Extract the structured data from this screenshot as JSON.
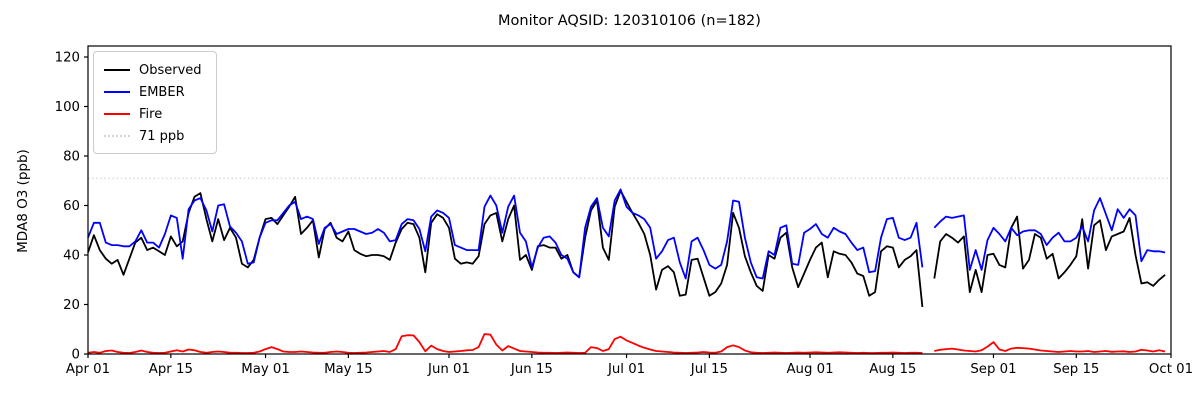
{
  "title": "Monitor AQSID: 120310106 (n=182)",
  "chart_data": {
    "type": "line",
    "title": "Monitor AQSID: 120310106 (n=182)",
    "xlabel": "",
    "ylabel": "MDA8 O3 (ppb)",
    "ylim": [
      0,
      124
    ],
    "yticks": [
      0,
      20,
      40,
      60,
      80,
      100,
      120
    ],
    "x_axis": {
      "start_date": "Apr 01",
      "end_date": "Oct 01",
      "unit": "day index from Apr 01",
      "tick_days": [
        0,
        14,
        30,
        44,
        61,
        75,
        91,
        105,
        122,
        136,
        153,
        167,
        183
      ],
      "tick_labels": [
        "Apr 01",
        "Apr 15",
        "May 01",
        "May 15",
        "Jun 01",
        "Jun 15",
        "Jul 01",
        "Jul 15",
        "Aug 01",
        "Aug 15",
        "Sep 01",
        "Sep 15",
        "Oct 01"
      ]
    },
    "grid": false,
    "legend_position": "upper left",
    "missing_day_index": 142,
    "n_points": 182,
    "threshold": {
      "label": "71 ppb",
      "value": 71,
      "color": "#d3d3d3",
      "style": "dotted"
    },
    "series": [
      {
        "name": "Observed",
        "color": "#000000",
        "values": [
          41,
          48,
          42,
          38.5,
          36.5,
          38,
          32,
          38.5,
          45,
          47,
          42,
          43,
          41.5,
          40,
          47.5,
          43.5,
          45.5,
          57,
          63.5,
          65,
          54.5,
          45.5,
          54.5,
          46,
          51,
          47,
          36.5,
          35,
          38,
          47,
          54.5,
          55,
          52.5,
          56,
          59.5,
          63.5,
          48.5,
          51,
          54,
          39,
          50.5,
          53,
          47,
          45.5,
          49.5,
          42,
          40.5,
          39.5,
          40,
          40,
          39.5,
          38,
          45,
          50.5,
          53,
          52.5,
          47,
          33,
          53,
          56.5,
          55,
          51,
          38.5,
          36.5,
          37,
          36.5,
          39.5,
          52.5,
          56,
          57,
          45.5,
          54.5,
          60,
          38,
          40,
          34,
          43.5,
          44,
          43,
          43,
          38.5,
          40,
          33,
          31,
          47,
          58,
          62,
          43,
          38,
          59.5,
          66,
          61.5,
          57,
          53,
          48.5,
          40,
          26,
          34,
          35.5,
          33,
          23.5,
          24,
          38,
          38.5,
          31,
          23.5,
          25,
          28.5,
          36,
          57,
          51,
          39.5,
          33,
          27.5,
          25.5,
          40,
          38.5,
          47,
          49,
          35,
          27,
          32.5,
          38,
          43,
          45,
          31,
          41.5,
          40.5,
          40,
          37,
          32.5,
          31.5,
          23.5,
          25,
          41.5,
          43.5,
          43,
          35,
          38,
          39.5,
          42,
          19,
          null,
          30.5,
          45.5,
          48.5,
          47,
          45,
          47.5,
          25,
          34,
          25,
          40,
          40.5,
          36,
          35,
          51,
          55.5,
          34.5,
          38,
          48.5,
          47,
          38.5,
          40.5,
          30.5,
          33,
          36,
          39.5,
          54.5,
          34.5,
          52,
          54,
          42,
          47.5,
          48.5,
          49.5,
          55,
          40,
          28.5,
          29,
          27.5,
          30,
          32
        ]
      },
      {
        "name": "EMBER",
        "color": "#0000ff",
        "values": [
          47,
          53,
          53,
          45,
          44,
          44,
          43.5,
          43.5,
          45.5,
          50,
          45,
          45,
          43,
          48.5,
          56,
          55,
          38.5,
          58.5,
          62,
          63,
          58,
          49.5,
          60,
          60.5,
          51.5,
          49,
          45.5,
          36.5,
          37,
          47,
          53,
          54,
          54,
          57,
          60,
          61.5,
          54.5,
          55.5,
          54.5,
          44.5,
          51,
          52.5,
          48.5,
          49.5,
          50.5,
          50.5,
          49.5,
          48.5,
          49,
          50.5,
          49,
          45.5,
          46,
          52.5,
          54.5,
          54,
          50.5,
          41.5,
          55.5,
          58,
          57,
          55,
          44,
          43,
          42,
          42,
          42,
          59.5,
          64,
          60,
          49,
          59.5,
          64,
          49,
          45.5,
          35,
          43,
          47,
          47.5,
          45,
          40,
          38.5,
          33,
          31,
          51,
          59.5,
          63,
          51,
          47.5,
          62,
          66.5,
          59.5,
          57,
          56,
          54.5,
          51,
          38.5,
          41.5,
          46,
          47,
          37,
          30.5,
          45.5,
          47,
          42,
          36,
          34.5,
          36,
          45.5,
          62,
          61.5,
          47,
          37,
          31,
          30.5,
          41.5,
          40,
          51,
          52,
          36.5,
          36,
          49,
          50.5,
          52.5,
          48.5,
          47,
          51,
          49.5,
          48.5,
          45,
          42,
          43,
          33,
          33.5,
          47,
          54.5,
          55,
          47,
          46,
          47,
          53,
          35,
          null,
          51,
          53.5,
          55.5,
          55,
          55.5,
          56,
          34,
          42,
          34,
          46,
          51,
          48.5,
          45.5,
          51,
          48,
          49.5,
          50,
          50,
          48.5,
          44,
          47,
          49,
          45.5,
          45.5,
          47,
          51.5,
          45.5,
          58,
          63,
          56.5,
          50,
          58.5,
          55,
          58.5,
          56,
          37.5,
          42,
          41.5,
          41.5,
          41
        ]
      },
      {
        "name": "Fire",
        "color": "#ff0000",
        "values": [
          0.5,
          0.8,
          0.5,
          1.2,
          1.4,
          0.8,
          0.5,
          0.4,
          0.8,
          1.4,
          0.8,
          0.5,
          0.4,
          0.5,
          1,
          1.5,
          1,
          1.8,
          1.5,
          0.8,
          0.5,
          0.8,
          1,
          0.8,
          0.5,
          0.5,
          0.4,
          0.4,
          0.5,
          1,
          2,
          2.8,
          2,
          1,
          0.8,
          0.8,
          1,
          0.8,
          0.6,
          0.5,
          0.5,
          0.8,
          1,
          0.8,
          0.5,
          0.4,
          0.5,
          0.6,
          0.8,
          1,
          1.2,
          0.8,
          2,
          7.2,
          7.6,
          7.5,
          4.8,
          1.1,
          3.4,
          2,
          1.2,
          0.8,
          1,
          1.2,
          1.5,
          1.6,
          2.8,
          8.1,
          7.8,
          3.8,
          1.4,
          3.2,
          2.2,
          1.2,
          1,
          0.8,
          0.6,
          0.5,
          0.5,
          0.4,
          0.5,
          0.6,
          0.5,
          0.4,
          0.5,
          2.8,
          2.4,
          1.2,
          2,
          6,
          7,
          5.5,
          4.5,
          3.4,
          2.5,
          1.8,
          1.2,
          1,
          0.8,
          0.6,
          0.5,
          0.4,
          0.5,
          0.6,
          0.8,
          0.6,
          0.5,
          1,
          2.8,
          3.5,
          2.8,
          1.4,
          0.7,
          0.5,
          0.4,
          0.5,
          0.6,
          0.5,
          0.4,
          0.5,
          0.6,
          0.5,
          0.6,
          0.7,
          0.6,
          0.5,
          0.6,
          0.7,
          0.6,
          0.5,
          0.4,
          0.5,
          0.4,
          0.4,
          0.5,
          0.5,
          0.6,
          0.5,
          0.4,
          0.5,
          0.5,
          0.4,
          null,
          1.2,
          1.7,
          2,
          2.2,
          1.8,
          1.4,
          1.2,
          1,
          1.5,
          3,
          4.8,
          1.8,
          1.2,
          2.2,
          2.5,
          2.4,
          2.2,
          1.8,
          1.4,
          1.2,
          1,
          0.8,
          1,
          1.2,
          1,
          1,
          1.2,
          0.8,
          1,
          1.2,
          0.9,
          1,
          1.1,
          0.8,
          1,
          1.7,
          1.4,
          1,
          1.5,
          1
        ]
      }
    ]
  }
}
